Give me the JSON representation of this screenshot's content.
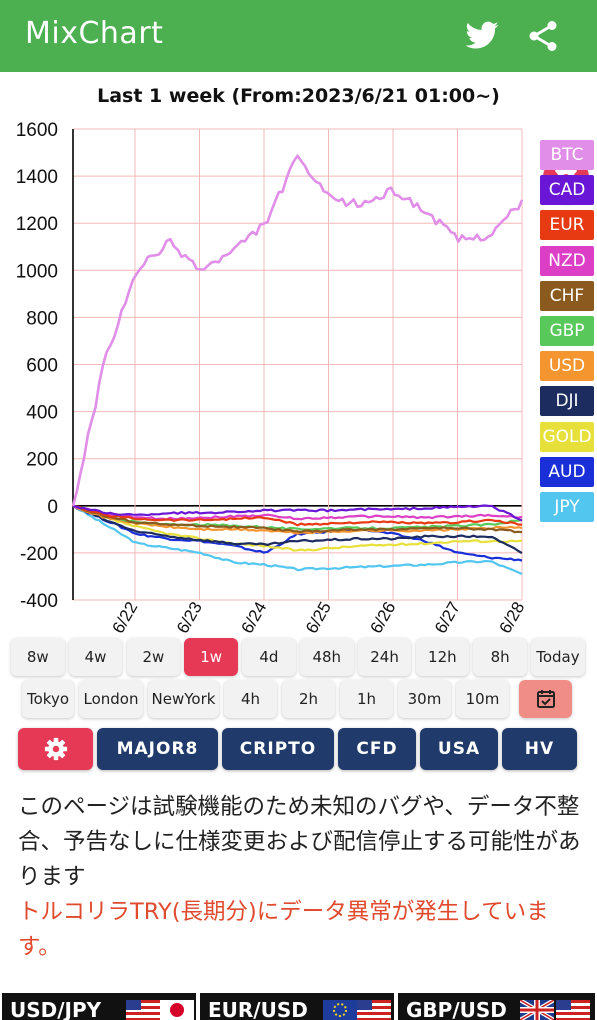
{
  "app": {
    "title": "MixChart"
  },
  "chart": {
    "title": "Last 1 week (From:2023/6/21 01:00~)"
  },
  "chart_data": {
    "type": "line",
    "title": "Last 1 week (From:2023/6/21 01:00~)",
    "ylim": [
      -400,
      1600
    ],
    "y_ticks": [
      1600,
      1400,
      1200,
      1000,
      800,
      600,
      400,
      200,
      0,
      -200,
      -400
    ],
    "x_ticks": [
      "6/22",
      "6/23",
      "6/24",
      "6/25",
      "6/26",
      "6/27",
      "6/28"
    ],
    "grid": true,
    "x": [
      "6/21",
      "6/21.5",
      "6/22",
      "6/22.5",
      "6/23",
      "6/23.5",
      "6/24",
      "6/24.5",
      "6/25",
      "6/25.5",
      "6/26",
      "6/26.5",
      "6/27",
      "6/27.5",
      "6/28"
    ],
    "series": [
      {
        "name": "BTC",
        "color": "#e08ee8",
        "values": [
          0,
          620,
          1000,
          1120,
          1000,
          1080,
          1200,
          1480,
          1300,
          1280,
          1340,
          1250,
          1130,
          1150,
          1290
        ]
      },
      {
        "name": "CAD",
        "color": "#6a16d6",
        "values": [
          0,
          -30,
          -40,
          -30,
          -30,
          -25,
          -20,
          -20,
          -20,
          -15,
          -15,
          -10,
          -5,
          0,
          -60
        ]
      },
      {
        "name": "EUR",
        "color": "#e83a12",
        "values": [
          0,
          -40,
          -55,
          -60,
          -60,
          -55,
          -50,
          -80,
          -75,
          -70,
          -70,
          -75,
          -70,
          -60,
          -80
        ]
      },
      {
        "name": "NZD",
        "color": "#dd3ec6",
        "values": [
          0,
          -35,
          -50,
          -55,
          -50,
          -45,
          -40,
          -55,
          -50,
          -45,
          -45,
          -50,
          -45,
          -40,
          -50
        ]
      },
      {
        "name": "CHF",
        "color": "#8b5a1e",
        "values": [
          0,
          -45,
          -70,
          -80,
          -85,
          -90,
          -95,
          -110,
          -105,
          -100,
          -100,
          -95,
          -95,
          -100,
          -110
        ]
      },
      {
        "name": "GBP",
        "color": "#58c85a",
        "values": [
          0,
          -40,
          -70,
          -80,
          -80,
          -85,
          -90,
          -100,
          -95,
          -95,
          -95,
          -90,
          -85,
          -80,
          -60
        ]
      },
      {
        "name": "USD",
        "color": "#f5952f",
        "values": [
          0,
          -50,
          -75,
          -90,
          -100,
          -100,
          -105,
          -115,
          -110,
          -105,
          -105,
          -105,
          -100,
          -95,
          -90
        ]
      },
      {
        "name": "DJI",
        "color": "#1c2c5f",
        "values": [
          0,
          -60,
          -110,
          -130,
          -145,
          -160,
          -165,
          -150,
          -145,
          -140,
          -140,
          -130,
          -130,
          -130,
          -200
        ]
      },
      {
        "name": "GOLD",
        "color": "#e8e03a",
        "values": [
          0,
          -50,
          -90,
          -120,
          -140,
          -160,
          -170,
          -190,
          -180,
          -170,
          -165,
          -160,
          -150,
          -150,
          -150
        ]
      },
      {
        "name": "AUD",
        "color": "#1a2fd8",
        "values": [
          0,
          -60,
          -120,
          -140,
          -150,
          -170,
          -200,
          -120,
          -110,
          -100,
          -120,
          -150,
          -200,
          -220,
          -230
        ]
      },
      {
        "name": "JPY",
        "color": "#52c6ee",
        "values": [
          0,
          -80,
          -160,
          -180,
          -200,
          -240,
          -250,
          -270,
          -265,
          -260,
          -255,
          -250,
          -240,
          -235,
          -290
        ]
      }
    ]
  },
  "range_buttons": [
    {
      "label": "8w",
      "active": false
    },
    {
      "label": "4w",
      "active": false
    },
    {
      "label": "2w",
      "active": false
    },
    {
      "label": "1w",
      "active": true
    },
    {
      "label": "4d",
      "active": false
    },
    {
      "label": "48h",
      "active": false
    },
    {
      "label": "24h",
      "active": false
    },
    {
      "label": "12h",
      "active": false
    },
    {
      "label": "8h",
      "active": false
    },
    {
      "label": "Today",
      "active": false
    }
  ],
  "session_buttons": [
    {
      "label": "Tokyo"
    },
    {
      "label": "London"
    },
    {
      "label": "NewYork"
    },
    {
      "label": "4h"
    },
    {
      "label": "2h"
    },
    {
      "label": "1h"
    },
    {
      "label": "30m"
    },
    {
      "label": "10m"
    }
  ],
  "group_buttons": [
    "MAJOR8",
    "CRIPTO",
    "CFD",
    "USA",
    "HV"
  ],
  "notice": {
    "text": "このページは試験機能のため未知のバグや、データ不整合、予告なしに仕様変更および配信停止する可能性があります",
    "warning": "トルコリラTRY(長期分)にデータ異常が発生しています。"
  },
  "tickers": [
    "USD/JPY",
    "EUR/USD",
    "GBP/USD"
  ],
  "colors": {
    "appbar": "#4caf50",
    "accent": "#e53955",
    "navy": "#1f3a6b"
  }
}
